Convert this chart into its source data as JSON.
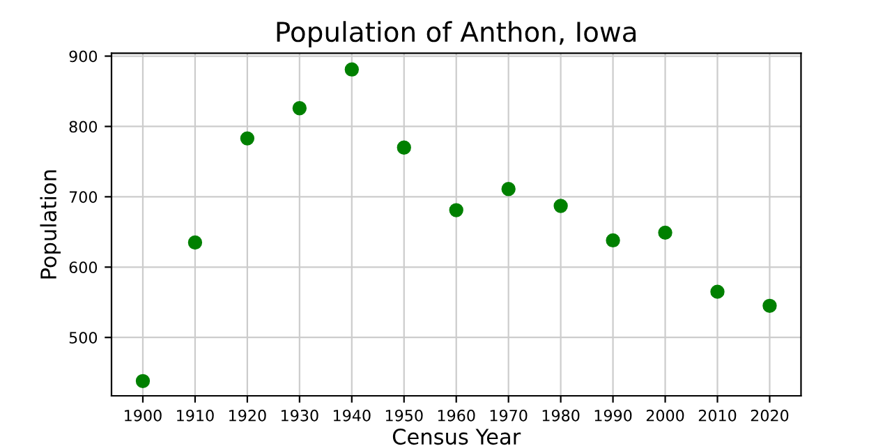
{
  "chart_data": {
    "type": "scatter",
    "title": "Population of Anthon, Iowa",
    "xlabel": "Census Year",
    "ylabel": "Population",
    "x": [
      1900,
      1910,
      1920,
      1930,
      1940,
      1950,
      1960,
      1970,
      1980,
      1990,
      2000,
      2010,
      2020
    ],
    "series": [
      {
        "color": "#008000",
        "values": [
          438,
          635,
          783,
          826,
          881,
          770,
          681,
          711,
          687,
          638,
          649,
          565,
          545
        ]
      }
    ],
    "xlim": [
      1894,
      2026
    ],
    "xticks": [
      1900,
      1910,
      1920,
      1930,
      1940,
      1950,
      1960,
      1970,
      1980,
      1990,
      2000,
      2010,
      2020
    ],
    "ylim": [
      417,
      904
    ],
    "yticks": [
      500,
      600,
      700,
      800,
      900
    ],
    "grid": true,
    "marker": "circle"
  }
}
